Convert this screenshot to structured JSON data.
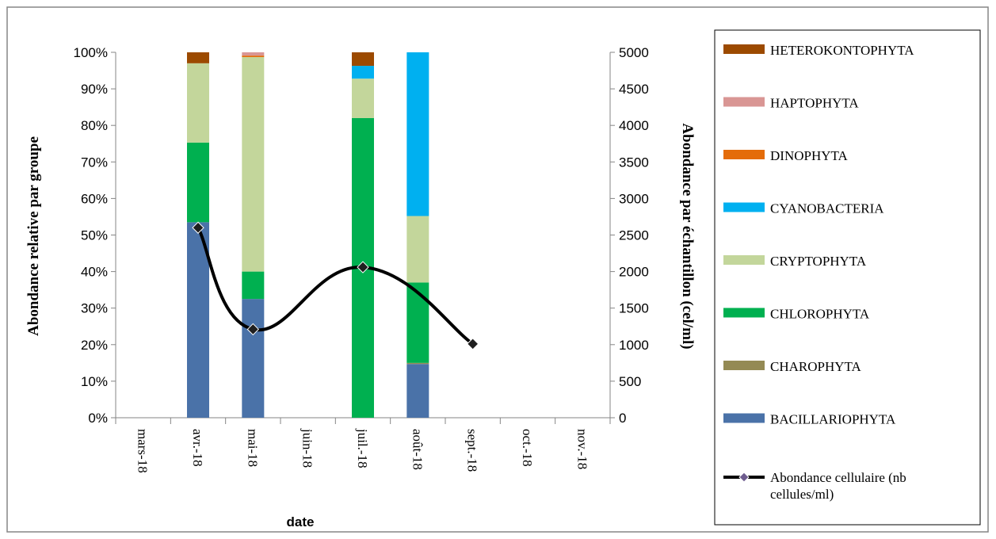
{
  "colors": {
    "HETEROKONTOPHYTA": "#9C4A00",
    "HAPTOPHYTA": "#D99694",
    "DINOPHYTA": "#E46C0A",
    "CYANOBACTERIA": "#00B0F0",
    "CRYPTOPHYTA": "#C3D69B",
    "CHLOROPHYTA": "#00B050",
    "CHAROPHYTA": "#948A54",
    "BACILLARIOPHYTA": "#4A72A8",
    "line": "#000000",
    "marker_fill": "#1F1F1F"
  },
  "chart_data": {
    "type": "bar",
    "stacked": true,
    "xlabel": "date",
    "ylabel": "Abondance relative par groupe",
    "y2label": "Abondance par échantillon (cel/ml)",
    "ylim": [
      0,
      100
    ],
    "y2lim": [
      0,
      5000
    ],
    "ytick_labels": [
      "0%",
      "10%",
      "20%",
      "30%",
      "40%",
      "50%",
      "60%",
      "70%",
      "80%",
      "90%",
      "100%"
    ],
    "y2tick_labels": [
      "0",
      "500",
      "1000",
      "1500",
      "2000",
      "2500",
      "3000",
      "3500",
      "4000",
      "4500",
      "5000"
    ],
    "categories": [
      "mars-18",
      "avr.-18",
      "mai-18",
      "juin-18",
      "juil.-18",
      "août-18",
      "sept.-18",
      "oct.-18",
      "nov.-18"
    ],
    "series": [
      {
        "name": "BACILLARIOPHYTA",
        "values": [
          0,
          53.5,
          32.5,
          0,
          0,
          14.7,
          0,
          0,
          0
        ]
      },
      {
        "name": "CHAROPHYTA",
        "values": [
          0,
          0,
          0,
          0,
          0,
          0.3,
          0,
          0,
          0
        ]
      },
      {
        "name": "CHLOROPHYTA",
        "values": [
          0,
          21.8,
          7.5,
          0,
          82,
          22,
          0,
          0,
          0
        ]
      },
      {
        "name": "CRYPTOPHYTA",
        "values": [
          0,
          21.7,
          58.7,
          0,
          10.8,
          18.2,
          0,
          0,
          0
        ]
      },
      {
        "name": "CYANOBACTERIA",
        "values": [
          0,
          0,
          0,
          0,
          3.5,
          44.8,
          0,
          0,
          0
        ]
      },
      {
        "name": "DINOPHYTA",
        "values": [
          0,
          0,
          0.4,
          0,
          0,
          0,
          0,
          0,
          0
        ]
      },
      {
        "name": "HAPTOPHYTA",
        "values": [
          0,
          0,
          0.9,
          0,
          0,
          0,
          0,
          0,
          0
        ]
      },
      {
        "name": "HETEROKONTOPHYTA",
        "values": [
          0,
          3,
          0,
          0,
          3.7,
          0,
          0,
          0,
          0
        ]
      }
    ],
    "line_series": {
      "name": "Abondance cellulaire (nb cellules/ml)",
      "axis": "secondary",
      "points": [
        {
          "x": "avr.-18",
          "y": 2600
        },
        {
          "x": "mai-18",
          "y": 1210
        },
        {
          "x": "juil.-18",
          "y": 2060
        },
        {
          "x": "sept.-18",
          "y": 1010
        }
      ]
    },
    "legend": {
      "position": "right",
      "entries": [
        "HETEROKONTOPHYTA",
        "HAPTOPHYTA",
        "DINOPHYTA",
        "CYANOBACTERIA",
        "CRYPTOPHYTA",
        "CHLOROPHYTA",
        "CHAROPHYTA",
        "BACILLARIOPHYTA"
      ],
      "line_entry_lines": [
        "Abondance cellulaire (nb",
        "cellules/ml)"
      ]
    },
    "grid": false
  }
}
